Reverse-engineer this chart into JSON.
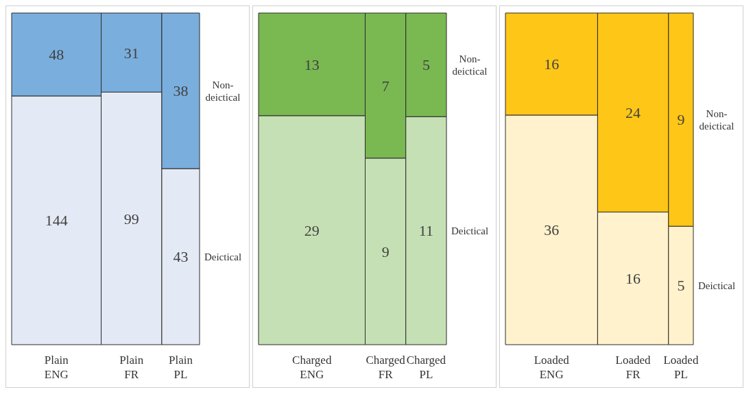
{
  "chart_data": [
    {
      "type": "other",
      "categories": [
        "Plain ENG",
        "Plain FR",
        "Plain PL"
      ],
      "data_labels": true,
      "series": [
        {
          "name": "Deictical",
          "color": "#e4eaf5",
          "values": [
            144,
            99,
            43
          ]
        },
        {
          "name": "Non-deictical",
          "color": "#7aaedd",
          "values": [
            48,
            31,
            38
          ]
        }
      ]
    },
    {
      "type": "other",
      "categories": [
        "Charged ENG",
        "Charged FR",
        "Charged PL"
      ],
      "data_labels": true,
      "series": [
        {
          "name": "Deictical",
          "color": "#c6e0b5",
          "values": [
            29,
            9,
            11
          ]
        },
        {
          "name": "Non-deictical",
          "color": "#7ab851",
          "values": [
            13,
            7,
            5
          ]
        }
      ]
    },
    {
      "type": "other",
      "categories": [
        "Loaded ENG",
        "Loaded FR",
        "Loaded PL"
      ],
      "data_labels": true,
      "series": [
        {
          "name": "Deictical",
          "color": "#fff2cc",
          "values": [
            36,
            16,
            5
          ]
        },
        {
          "name": "Non-deictical",
          "color": "#fec617",
          "values": [
            16,
            24,
            9
          ]
        }
      ]
    }
  ]
}
